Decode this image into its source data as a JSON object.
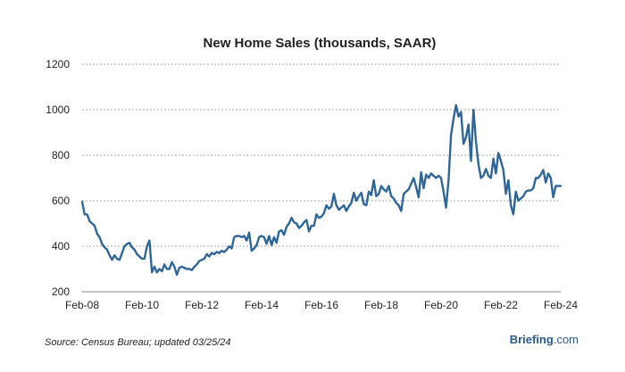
{
  "chart_data": {
    "type": "line",
    "title": "New Home Sales (thousands, SAAR)",
    "xlabel": "",
    "ylabel": "",
    "x_range": [
      "2008-02",
      "2024-02"
    ],
    "ylim": [
      200,
      1200
    ],
    "yticks": [
      "200",
      "400",
      "600",
      "800",
      "1000",
      "1200"
    ],
    "xticks": [
      {
        "label": "Feb-08",
        "date": "2008-02"
      },
      {
        "label": "Feb-10",
        "date": "2010-02"
      },
      {
        "label": "Feb-12",
        "date": "2012-02"
      },
      {
        "label": "Feb-14",
        "date": "2014-02"
      },
      {
        "label": "Feb-16",
        "date": "2016-02"
      },
      {
        "label": "Feb-18",
        "date": "2018-02"
      },
      {
        "label": "Feb-20",
        "date": "2020-02"
      },
      {
        "label": "Feb-22",
        "date": "2022-02"
      },
      {
        "label": "Feb-24",
        "date": "2024-02"
      }
    ],
    "grid": true,
    "series": [
      {
        "name": "",
        "color": "#2f6699",
        "points": [
          [
            "2008-02",
            595
          ],
          [
            "2008-03",
            540
          ],
          [
            "2008-04",
            540
          ],
          [
            "2008-05",
            510
          ],
          [
            "2008-06",
            500
          ],
          [
            "2008-07",
            490
          ],
          [
            "2008-08",
            455
          ],
          [
            "2008-09",
            440
          ],
          [
            "2008-10",
            410
          ],
          [
            "2008-11",
            395
          ],
          [
            "2008-12",
            385
          ],
          [
            "2009-01",
            360
          ],
          [
            "2009-02",
            340
          ],
          [
            "2009-03",
            360
          ],
          [
            "2009-04",
            345
          ],
          [
            "2009-05",
            340
          ],
          [
            "2009-06",
            370
          ],
          [
            "2009-07",
            400
          ],
          [
            "2009-08",
            410
          ],
          [
            "2009-09",
            415
          ],
          [
            "2009-10",
            395
          ],
          [
            "2009-11",
            385
          ],
          [
            "2009-12",
            365
          ],
          [
            "2010-01",
            355
          ],
          [
            "2010-02",
            345
          ],
          [
            "2010-03",
            345
          ],
          [
            "2010-04",
            400
          ],
          [
            "2010-05",
            425
          ],
          [
            "2010-06",
            285
          ],
          [
            "2010-07",
            310
          ],
          [
            "2010-08",
            285
          ],
          [
            "2010-09",
            300
          ],
          [
            "2010-10",
            290
          ],
          [
            "2010-11",
            320
          ],
          [
            "2010-12",
            300
          ],
          [
            "2011-01",
            300
          ],
          [
            "2011-02",
            330
          ],
          [
            "2011-03",
            310
          ],
          [
            "2011-04",
            275
          ],
          [
            "2011-05",
            305
          ],
          [
            "2011-06",
            310
          ],
          [
            "2011-07",
            305
          ],
          [
            "2011-08",
            300
          ],
          [
            "2011-09",
            300
          ],
          [
            "2011-10",
            295
          ],
          [
            "2011-11",
            310
          ],
          [
            "2011-12",
            320
          ],
          [
            "2012-01",
            335
          ],
          [
            "2012-02",
            340
          ],
          [
            "2012-03",
            345
          ],
          [
            "2012-04",
            365
          ],
          [
            "2012-05",
            355
          ],
          [
            "2012-06",
            370
          ],
          [
            "2012-07",
            365
          ],
          [
            "2012-08",
            375
          ],
          [
            "2012-09",
            370
          ],
          [
            "2012-10",
            380
          ],
          [
            "2012-11",
            375
          ],
          [
            "2012-12",
            385
          ],
          [
            "2013-01",
            400
          ],
          [
            "2013-02",
            390
          ],
          [
            "2013-03",
            440
          ],
          [
            "2013-04",
            445
          ],
          [
            "2013-05",
            445
          ],
          [
            "2013-06",
            440
          ],
          [
            "2013-07",
            445
          ],
          [
            "2013-08",
            425
          ],
          [
            "2013-09",
            460
          ],
          [
            "2013-10",
            380
          ],
          [
            "2013-11",
            390
          ],
          [
            "2013-12",
            405
          ],
          [
            "2014-01",
            440
          ],
          [
            "2014-02",
            445
          ],
          [
            "2014-03",
            440
          ],
          [
            "2014-04",
            410
          ],
          [
            "2014-05",
            445
          ],
          [
            "2014-06",
            405
          ],
          [
            "2014-07",
            440
          ],
          [
            "2014-08",
            415
          ],
          [
            "2014-09",
            465
          ],
          [
            "2014-10",
            470
          ],
          [
            "2014-11",
            450
          ],
          [
            "2014-12",
            485
          ],
          [
            "2015-01",
            500
          ],
          [
            "2015-02",
            525
          ],
          [
            "2015-03",
            505
          ],
          [
            "2015-04",
            500
          ],
          [
            "2015-05",
            480
          ],
          [
            "2015-06",
            490
          ],
          [
            "2015-07",
            505
          ],
          [
            "2015-08",
            515
          ],
          [
            "2015-09",
            465
          ],
          [
            "2015-10",
            490
          ],
          [
            "2015-11",
            490
          ],
          [
            "2015-12",
            540
          ],
          [
            "2016-01",
            525
          ],
          [
            "2016-02",
            530
          ],
          [
            "2016-03",
            545
          ],
          [
            "2016-04",
            580
          ],
          [
            "2016-05",
            565
          ],
          [
            "2016-06",
            575
          ],
          [
            "2016-07",
            630
          ],
          [
            "2016-08",
            580
          ],
          [
            "2016-09",
            560
          ],
          [
            "2016-10",
            570
          ],
          [
            "2016-11",
            580
          ],
          [
            "2016-12",
            555
          ],
          [
            "2017-01",
            575
          ],
          [
            "2017-02",
            590
          ],
          [
            "2017-03",
            635
          ],
          [
            "2017-04",
            600
          ],
          [
            "2017-05",
            620
          ],
          [
            "2017-06",
            635
          ],
          [
            "2017-07",
            585
          ],
          [
            "2017-08",
            580
          ],
          [
            "2017-09",
            640
          ],
          [
            "2017-10",
            625
          ],
          [
            "2017-11",
            690
          ],
          [
            "2017-12",
            620
          ],
          [
            "2018-01",
            630
          ],
          [
            "2018-02",
            665
          ],
          [
            "2018-03",
            650
          ],
          [
            "2018-04",
            640
          ],
          [
            "2018-05",
            665
          ],
          [
            "2018-06",
            620
          ],
          [
            "2018-07",
            610
          ],
          [
            "2018-08",
            590
          ],
          [
            "2018-09",
            580
          ],
          [
            "2018-10",
            555
          ],
          [
            "2018-11",
            630
          ],
          [
            "2018-12",
            640
          ],
          [
            "2019-01",
            650
          ],
          [
            "2019-02",
            675
          ],
          [
            "2019-03",
            700
          ],
          [
            "2019-04",
            660
          ],
          [
            "2019-05",
            615
          ],
          [
            "2019-06",
            725
          ],
          [
            "2019-07",
            655
          ],
          [
            "2019-08",
            715
          ],
          [
            "2019-09",
            700
          ],
          [
            "2019-10",
            720
          ],
          [
            "2019-11",
            710
          ],
          [
            "2019-12",
            700
          ],
          [
            "2020-01",
            710
          ],
          [
            "2020-02",
            700
          ],
          [
            "2020-03",
            640
          ],
          [
            "2020-04",
            570
          ],
          [
            "2020-05",
            690
          ],
          [
            "2020-06",
            890
          ],
          [
            "2020-07",
            960
          ],
          [
            "2020-08",
            1020
          ],
          [
            "2020-09",
            970
          ],
          [
            "2020-10",
            990
          ],
          [
            "2020-11",
            850
          ],
          [
            "2020-12",
            880
          ],
          [
            "2021-01",
            935
          ],
          [
            "2021-02",
            775
          ],
          [
            "2021-03",
            1000
          ],
          [
            "2021-04",
            860
          ],
          [
            "2021-05",
            760
          ],
          [
            "2021-06",
            700
          ],
          [
            "2021-07",
            710
          ],
          [
            "2021-08",
            740
          ],
          [
            "2021-09",
            710
          ],
          [
            "2021-10",
            700
          ],
          [
            "2021-11",
            785
          ],
          [
            "2021-12",
            720
          ],
          [
            "2022-01",
            810
          ],
          [
            "2022-02",
            775
          ],
          [
            "2022-03",
            735
          ],
          [
            "2022-04",
            630
          ],
          [
            "2022-05",
            690
          ],
          [
            "2022-06",
            580
          ],
          [
            "2022-07",
            540
          ],
          [
            "2022-08",
            640
          ],
          [
            "2022-09",
            600
          ],
          [
            "2022-10",
            610
          ],
          [
            "2022-11",
            620
          ],
          [
            "2022-12",
            640
          ],
          [
            "2023-01",
            645
          ],
          [
            "2023-02",
            645
          ],
          [
            "2023-03",
            655
          ],
          [
            "2023-04",
            700
          ],
          [
            "2023-05",
            700
          ],
          [
            "2023-06",
            715
          ],
          [
            "2023-07",
            735
          ],
          [
            "2023-08",
            680
          ],
          [
            "2023-09",
            720
          ],
          [
            "2023-10",
            700
          ],
          [
            "2023-11",
            615
          ],
          [
            "2023-12",
            665
          ],
          [
            "2024-01",
            665
          ],
          [
            "2024-02",
            665
          ]
        ]
      }
    ]
  },
  "footer": {
    "source": "Source: Census Bureau; updated 03/25/24",
    "brand_main": "Briefing",
    "brand_suffix": ".com",
    "brand_color": "#2a5b8c"
  }
}
